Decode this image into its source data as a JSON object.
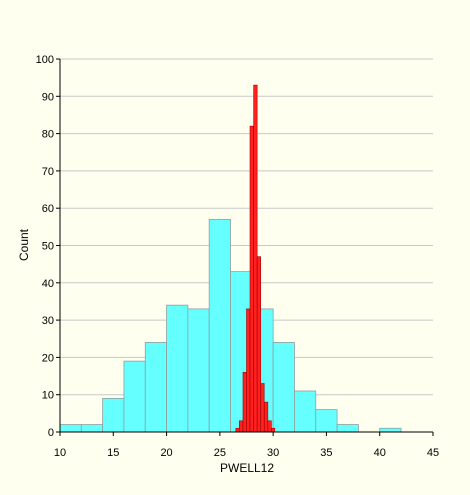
{
  "chart_data": {
    "type": "bar",
    "xlabel": "PWELL12",
    "ylabel": "Count",
    "xlim": [
      10,
      45
    ],
    "ylim": [
      0,
      100
    ],
    "xticks": [
      10,
      15,
      20,
      25,
      30,
      35,
      40,
      45
    ],
    "yticks": [
      0,
      10,
      20,
      30,
      40,
      50,
      60,
      70,
      80,
      90,
      100
    ],
    "grid": true,
    "series": [
      {
        "color": "#66ffff",
        "bin_width": 2,
        "bins": [
          {
            "x0": 10,
            "count": 2
          },
          {
            "x0": 12,
            "count": 2
          },
          {
            "x0": 14,
            "count": 9
          },
          {
            "x0": 16,
            "count": 19
          },
          {
            "x0": 18,
            "count": 24
          },
          {
            "x0": 20,
            "count": 34
          },
          {
            "x0": 22,
            "count": 33
          },
          {
            "x0": 24,
            "count": 57
          },
          {
            "x0": 26,
            "count": 43
          },
          {
            "x0": 28,
            "count": 33
          },
          {
            "x0": 30,
            "count": 24
          },
          {
            "x0": 32,
            "count": 11
          },
          {
            "x0": 34,
            "count": 6
          },
          {
            "x0": 36,
            "count": 2
          },
          {
            "x0": 38,
            "count": 0
          },
          {
            "x0": 40,
            "count": 1
          }
        ]
      },
      {
        "color": "#ff2020",
        "bin_width": 0.33,
        "bins": [
          {
            "x0": 26.5,
            "count": 1
          },
          {
            "x0": 26.83,
            "count": 3
          },
          {
            "x0": 27.17,
            "count": 16
          },
          {
            "x0": 27.5,
            "count": 33
          },
          {
            "x0": 27.83,
            "count": 82
          },
          {
            "x0": 28.17,
            "count": 93
          },
          {
            "x0": 28.5,
            "count": 47
          },
          {
            "x0": 28.83,
            "count": 13
          },
          {
            "x0": 29.17,
            "count": 8
          },
          {
            "x0": 29.5,
            "count": 3
          },
          {
            "x0": 29.83,
            "count": 1
          }
        ]
      }
    ]
  }
}
